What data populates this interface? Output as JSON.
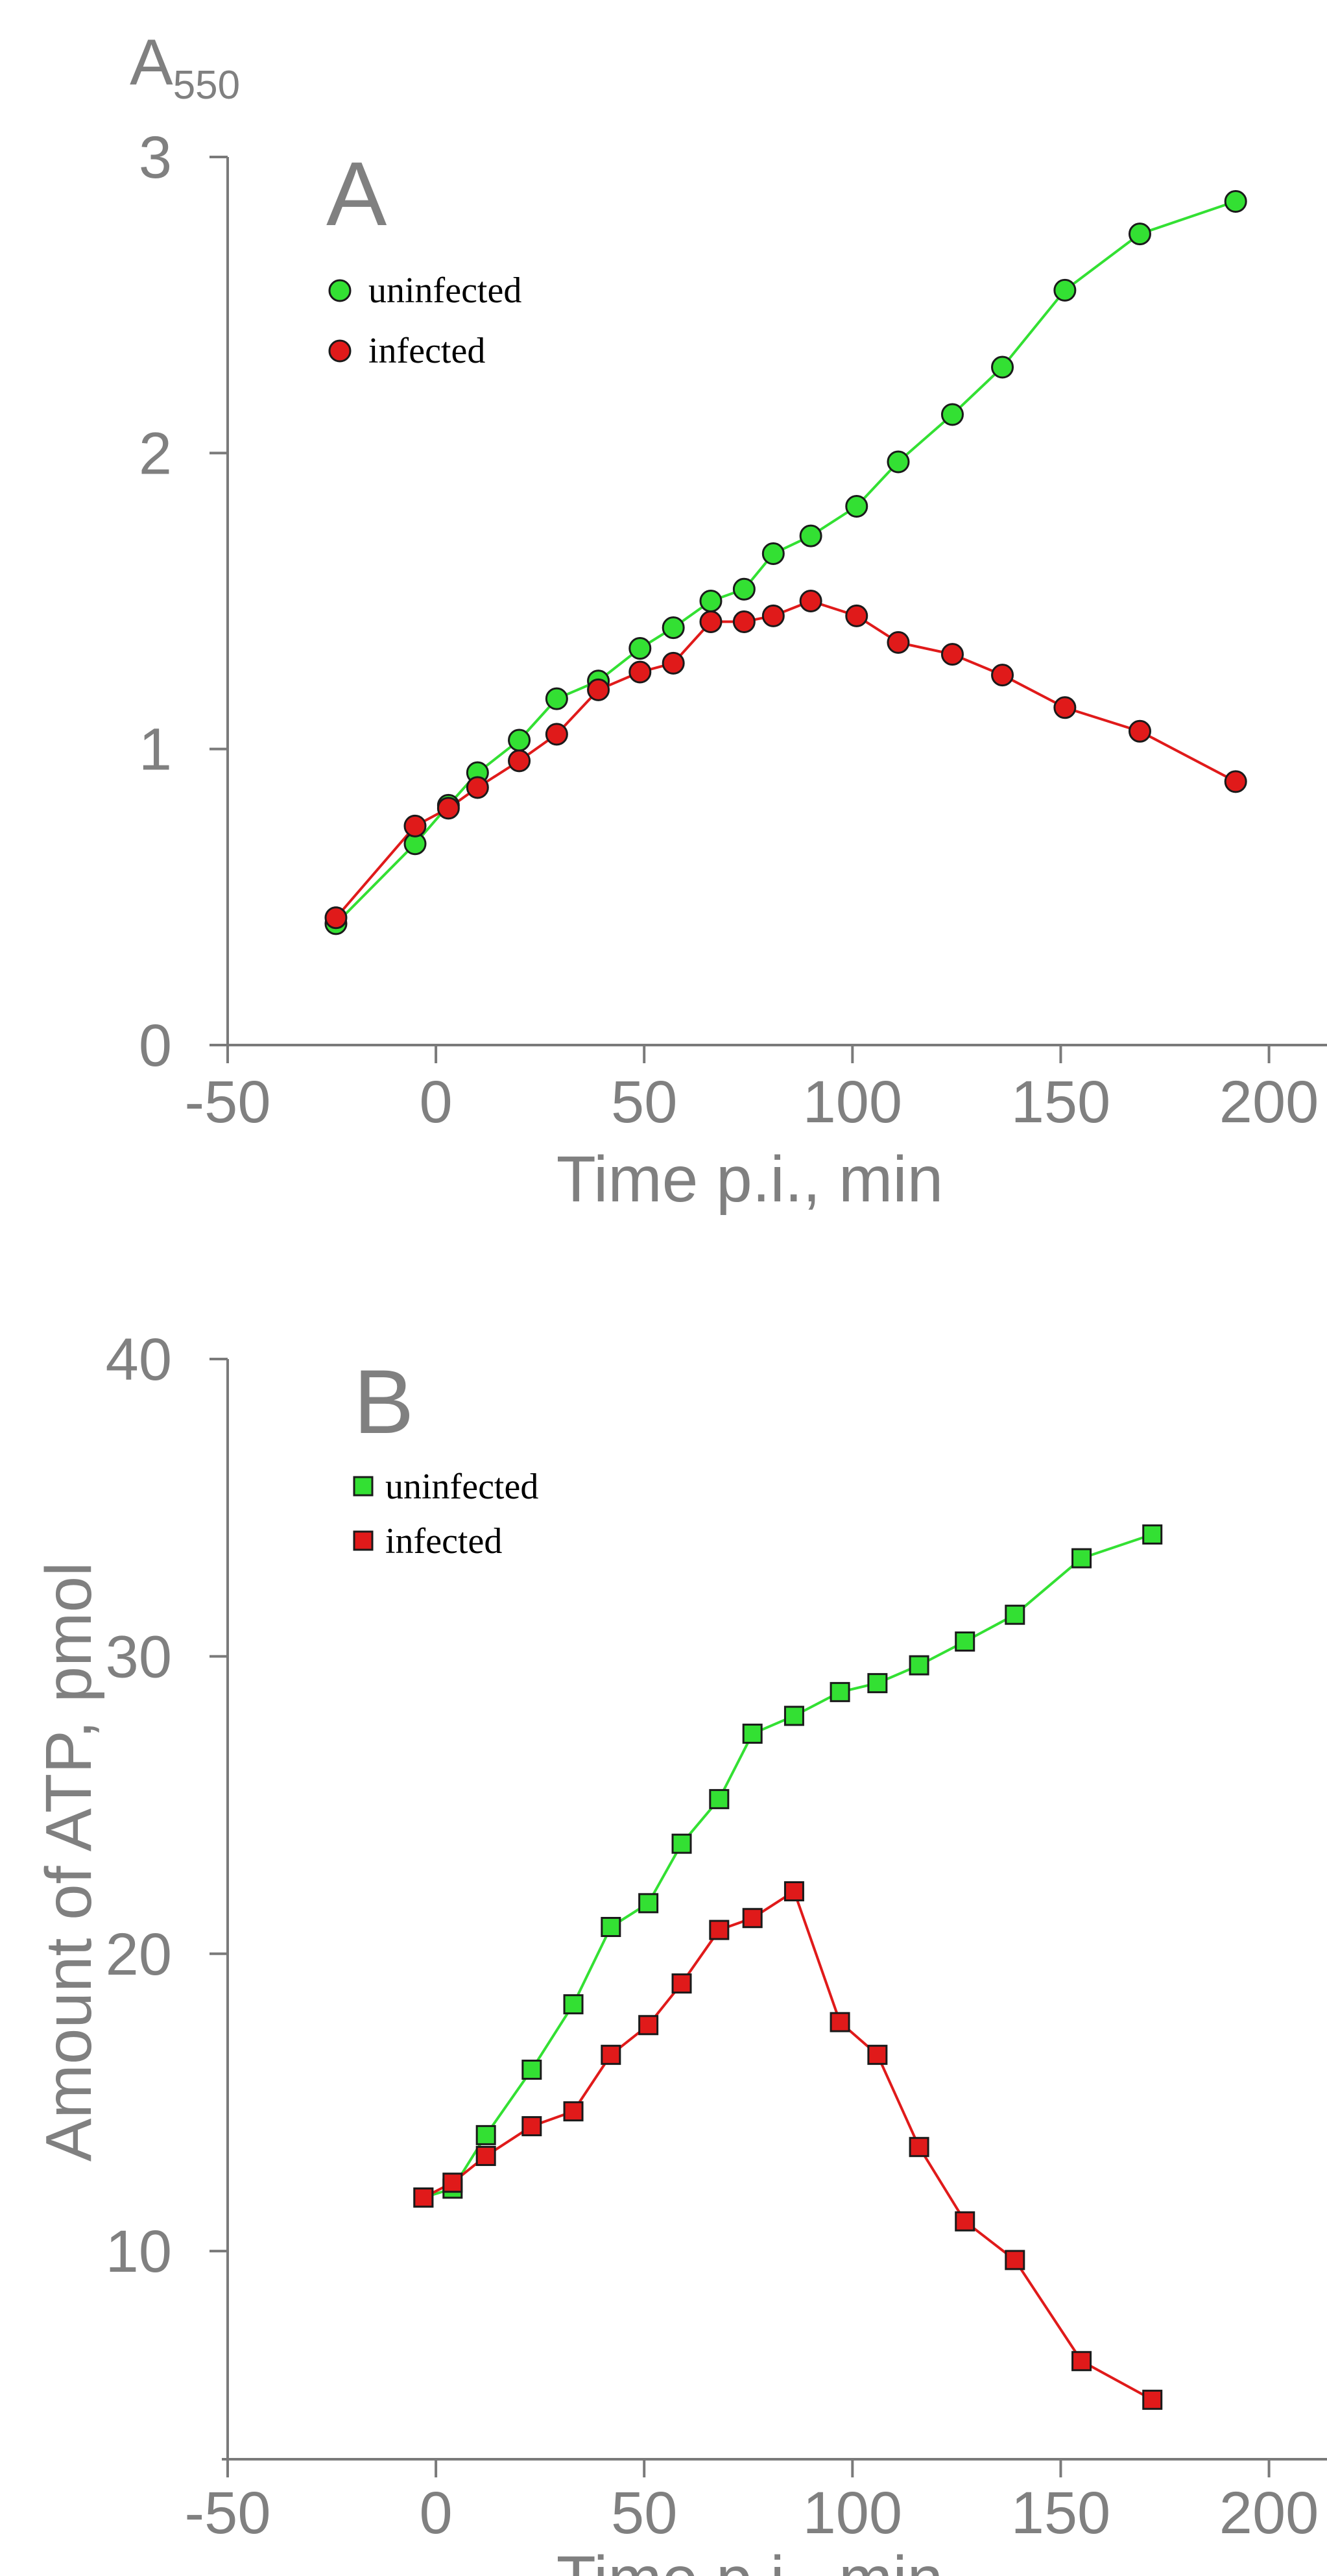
{
  "colors": {
    "uninfected": "#33e033",
    "infected": "#e01a1a"
  },
  "chart_data": [
    {
      "type": "line",
      "panel": "A",
      "title": "",
      "xlabel": "Time p.i., min",
      "ylabel": "A",
      "ylabel_sub": "550",
      "xlim": [
        -50,
        220
      ],
      "ylim": [
        0,
        3
      ],
      "xticks": [
        -50,
        0,
        50,
        100,
        150,
        200
      ],
      "yticks": [
        0,
        1,
        2,
        3
      ],
      "xtick_labels": [
        "-50",
        "0",
        "50",
        "100",
        "150",
        "200"
      ],
      "ytick_labels": [
        "0",
        "1",
        "2",
        "3"
      ],
      "marker": "circle",
      "legend_position": "top-left",
      "series": [
        {
          "name": "uninfected",
          "color_key": "uninfected",
          "x": [
            -24,
            -5,
            3,
            10,
            20,
            29,
            39,
            49,
            57,
            66,
            74,
            81,
            90,
            101,
            111,
            124,
            136,
            151,
            169,
            192
          ],
          "y": [
            0.41,
            0.68,
            0.81,
            0.92,
            1.03,
            1.17,
            1.23,
            1.34,
            1.41,
            1.5,
            1.54,
            1.66,
            1.72,
            1.82,
            1.97,
            2.13,
            2.29,
            2.55,
            2.74,
            2.85
          ]
        },
        {
          "name": "infected",
          "color_key": "infected",
          "x": [
            -24,
            -5,
            3,
            10,
            20,
            29,
            39,
            49,
            57,
            66,
            74,
            81,
            90,
            101,
            111,
            124,
            136,
            151,
            169,
            192
          ],
          "y": [
            0.43,
            0.74,
            0.8,
            0.87,
            0.96,
            1.05,
            1.2,
            1.26,
            1.29,
            1.43,
            1.43,
            1.45,
            1.5,
            1.45,
            1.36,
            1.32,
            1.25,
            1.14,
            1.06,
            0.89
          ]
        }
      ]
    },
    {
      "type": "line",
      "panel": "B",
      "title": "",
      "xlabel": "Time p.i., min",
      "ylabel": "Amount of ATP, pmol",
      "xlim": [
        -50,
        220
      ],
      "ylim": [
        3,
        40
      ],
      "xticks": [
        -50,
        0,
        50,
        100,
        150,
        200
      ],
      "yticks": [
        10,
        20,
        30,
        40
      ],
      "xtick_labels": [
        "-50",
        "0",
        "50",
        "100",
        "150",
        "200"
      ],
      "ytick_labels": [
        "10",
        "20",
        "30",
        "40"
      ],
      "marker": "square",
      "legend_position": "top-left",
      "series": [
        {
          "name": "uninfected",
          "color_key": "uninfected",
          "x": [
            -3,
            4,
            12,
            23,
            33,
            42,
            51,
            59,
            68,
            76,
            86,
            97,
            106,
            116,
            127,
            139,
            155,
            172
          ],
          "y": [
            11.8,
            12.1,
            13.9,
            16.1,
            18.3,
            20.9,
            21.7,
            23.7,
            25.2,
            27.4,
            28,
            28.8,
            29.1,
            29.7,
            30.5,
            31.4,
            33.3,
            34.1
          ]
        },
        {
          "name": "infected",
          "color_key": "infected",
          "x": [
            -3,
            4,
            12,
            23,
            33,
            42,
            51,
            59,
            68,
            76,
            86,
            97,
            106,
            116,
            127,
            139,
            155,
            172
          ],
          "y": [
            11.8,
            12.3,
            13.2,
            14.2,
            14.7,
            16.6,
            17.6,
            19,
            20.8,
            21.2,
            22.1,
            17.7,
            16.6,
            13.5,
            11,
            9.7,
            6.3,
            5
          ]
        }
      ]
    }
  ]
}
